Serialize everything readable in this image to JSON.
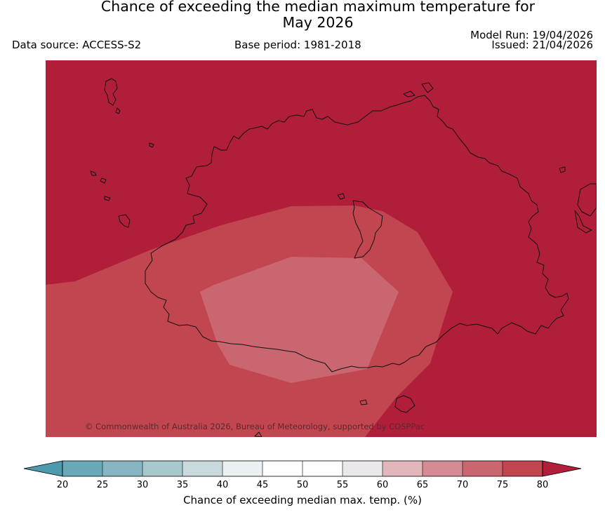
{
  "title": {
    "line1": "Chance of exceeding the median maximum temperature for",
    "line2": "May 2026"
  },
  "header": {
    "data_source": "Data source: ACCESS-S2",
    "base_period": "Base period: 1981-2018",
    "model_run": "Model Run: 19/04/2026",
    "issued": "Issued: 21/04/2026"
  },
  "map": {
    "copyright": "© Commonwealth of Australia 2026, Bureau of Meteorology, supported by COSPPac",
    "region_colors": {
      "above_75": "#b01e3a",
      "70_75": "#c2464f",
      "65_70": "#c96670"
    }
  },
  "colorbar": {
    "label": "Chance of exceeding median max. temp. (%)",
    "ticks": [
      "20",
      "25",
      "30",
      "35",
      "40",
      "45",
      "50",
      "55",
      "60",
      "65",
      "70",
      "75",
      "80"
    ],
    "low_extend_color": "#4e9aad",
    "high_extend_color": "#b01e3a",
    "colors": [
      "#69a9b7",
      "#87b6c2",
      "#a7c8cd",
      "#c8dadd",
      "#ebf1f3",
      "#ffffff",
      "#ffffff",
      "#eae8ea",
      "#e1b7bc",
      "#d48b94",
      "#c96670",
      "#c2464f"
    ]
  }
}
